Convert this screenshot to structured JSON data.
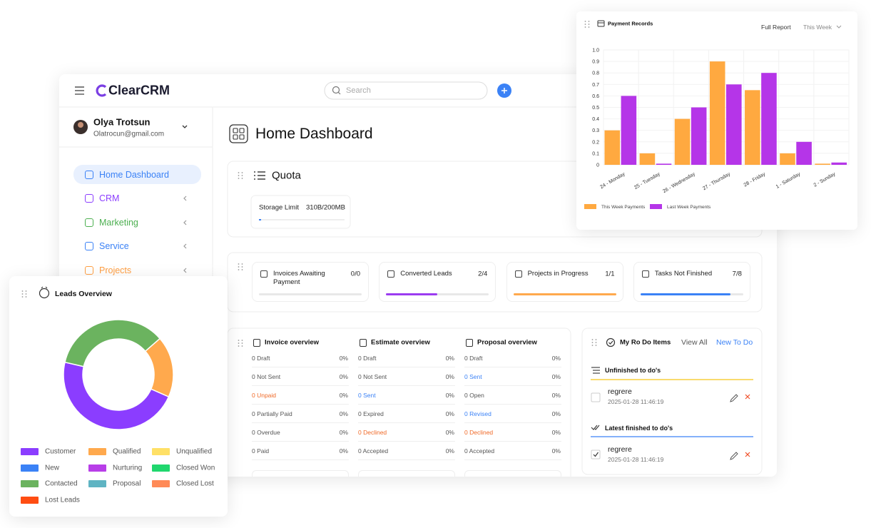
{
  "app": {
    "logo": "ClearCRM",
    "search_placeholder": "Search"
  },
  "user": {
    "name": "Olya Trotsun",
    "email": "Olatrocun@gmail.com"
  },
  "nav": [
    {
      "label": "Home Dashboard",
      "color": "#3b82f6"
    },
    {
      "label": "CRM",
      "color": "#8b3dff"
    },
    {
      "label": "Marketing",
      "color": "#4caf50"
    },
    {
      "label": "Service",
      "color": "#3b82f6"
    },
    {
      "label": "Projects",
      "color": "#ff9f43"
    }
  ],
  "page_title": "Home Dashboard",
  "quota": {
    "title": "Quota",
    "label": "Storage Limit",
    "value": "310B/200MB"
  },
  "stats": [
    {
      "label": "Invoices Awaiting Payment",
      "value": "0/0"
    },
    {
      "label": "Converted Leads",
      "value": "2/4",
      "color": "#9b3cf0"
    },
    {
      "label": "Projects in Progress",
      "value": "1/1",
      "color": "#ffa94d"
    },
    {
      "label": "Tasks Not Finished",
      "value": "7/8",
      "color": "#3b82f6"
    }
  ],
  "overviews": [
    {
      "title": "Invoice overview",
      "rows": [
        {
          "status": "0 Draft",
          "percent": "0%"
        },
        {
          "status": "0 Not Sent",
          "percent": "0%"
        },
        {
          "status": "0 Unpaid",
          "percent": "0%",
          "color": "#f06a28"
        },
        {
          "status": "0 Partially Paid",
          "percent": "0%"
        },
        {
          "status": "0 Overdue",
          "percent": "0%"
        },
        {
          "status": "0 Paid",
          "percent": "0%"
        }
      ]
    },
    {
      "title": "Estimate overview",
      "rows": [
        {
          "status": "0 Draft",
          "percent": "0%"
        },
        {
          "status": "0 Not Sent",
          "percent": "0%"
        },
        {
          "status": "0 Sent",
          "percent": "0%",
          "color": "#3b82f6"
        },
        {
          "status": "0 Expired",
          "percent": "0%"
        },
        {
          "status": "0 Declined",
          "percent": "0%",
          "color": "#f06a28"
        },
        {
          "status": "0 Accepted",
          "percent": "0%"
        }
      ]
    },
    {
      "title": "Proposal overview",
      "rows": [
        {
          "status": "0 Draft",
          "percent": "0%"
        },
        {
          "status": "0 Sent",
          "percent": "0%",
          "color": "#3b82f6"
        },
        {
          "status": "0 Open",
          "percent": "0%"
        },
        {
          "status": "0 Revised",
          "percent": "0%",
          "color": "#3b82f6"
        },
        {
          "status": "0 Declined",
          "percent": "0%",
          "color": "#f06a28"
        },
        {
          "status": "0 Accepted",
          "percent": "0%"
        }
      ]
    }
  ],
  "todo": {
    "title": "My Ro Do Items",
    "view_all": "View All",
    "new_todo": "New To Do",
    "unfinished": {
      "title": "Unfinished to do's",
      "items": [
        {
          "text": "regrere",
          "date": "2025-01-28 11:46:19"
        }
      ]
    },
    "finished": {
      "title": "Latest finished to do's",
      "items": [
        {
          "text": "regrere",
          "date": "2025-01-28 11:46:19"
        }
      ]
    }
  },
  "chart_data": [
    {
      "type": "bar",
      "title": "Payment Records",
      "report_link": "Full Report",
      "period": "This Week",
      "categories": [
        "24 - Monday",
        "25 - Tuesday",
        "26 - Wednesday",
        "27 - Thursday",
        "28 - Friday",
        "1 - Saturday",
        "2 - Sunday"
      ],
      "series": [
        {
          "name": "This Week Payments",
          "color": "#ffa940",
          "values": [
            0.3,
            0.1,
            0.4,
            0.9,
            0.65,
            0.1,
            0.01
          ]
        },
        {
          "name": "Last Week Payments",
          "color": "#b535e8",
          "values": [
            0.6,
            0.01,
            0.5,
            0.7,
            0.8,
            0.2,
            0.02
          ]
        }
      ],
      "ylim": [
        0,
        1
      ],
      "yticks": [
        0,
        0.1,
        0.2,
        0.3,
        0.4,
        0.5,
        0.6,
        0.7,
        0.8,
        0.9,
        {
          "value": 1,
          "label": "1.0"
        }
      ],
      "grid": true,
      "legend": "bottom-left"
    },
    {
      "type": "pie",
      "title": "Leads Overview",
      "categories": [
        "Customer",
        "Qualified",
        "Unqualified",
        "New",
        "Nurturing",
        "Closed Won",
        "Contacted",
        "Proposal",
        "Closed Lost",
        "Lost Leads"
      ],
      "values": [
        47,
        18,
        0,
        0,
        0,
        0,
        35,
        0,
        0,
        0
      ],
      "colors": [
        "#8b3dff",
        "#ffa94d",
        "#ffe066",
        "#3b82f6",
        "#b83ee8",
        "#20d76e",
        "#6bb35f",
        "#5fb4c3",
        "#ff8a57",
        "#ff4d12"
      ],
      "donut": true,
      "legend": "bottom"
    }
  ]
}
